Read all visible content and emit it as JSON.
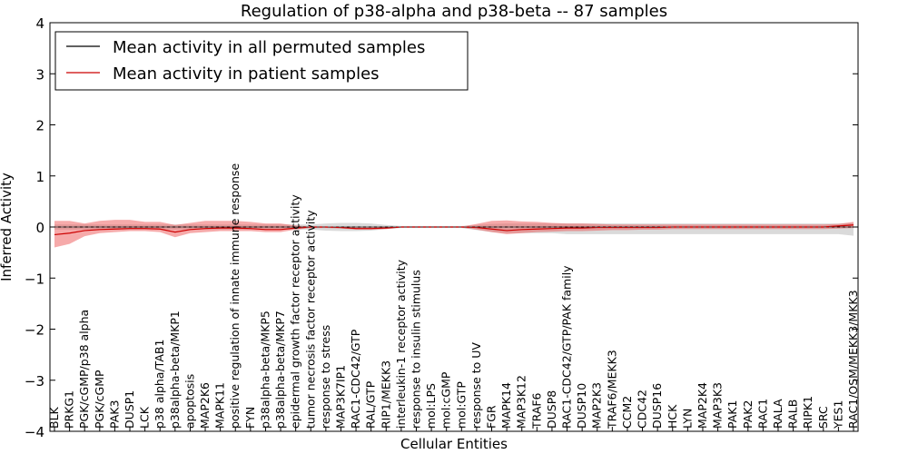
{
  "chart_data": {
    "type": "line",
    "title": "Regulation of p38-alpha and p38-beta -- 87 samples",
    "xlabel": "Cellular Entities",
    "ylabel": "Inferred Activity",
    "ylim": [
      -4,
      4
    ],
    "yticks": [
      -4,
      -3,
      -2,
      -1,
      0,
      1,
      2,
      3,
      4
    ],
    "ytick_labels": [
      "−4",
      "−3",
      "−2",
      "−1",
      "0",
      "1",
      "2",
      "3",
      "4"
    ],
    "legend_position": "top-left",
    "colors": {
      "permuted": "#000000",
      "patient": "#cc0000",
      "permuted_band": "#bbbbbb",
      "patient_band": "#ee5555"
    },
    "categories": [
      "BLK",
      "PRKG1",
      "PGK/cGMP/p38 alpha",
      "PGK/cGMP",
      "PAK3",
      "DUSP1",
      "LCK",
      "p38 alpha/TAB1",
      "p38alpha-beta/MKP1",
      "apoptosis",
      "MAP2K6",
      "MAPK11",
      "positive regulation of innate immune response",
      "FYN",
      "p38alpha-beta/MKP5",
      "p38alpha-beta/MKP7",
      "epidermal growth factor receptor activity",
      "tumor necrosis factor receptor activity",
      "response to stress",
      "MAP3K7IP1",
      "RAC1-CDC42/GTP",
      "RAL/GTP",
      "RIP1/MEKK3",
      "interleukin-1 receptor activity",
      "response to insulin stimulus",
      "mol:LPS",
      "mol:cGMP",
      "mol:GTP",
      "response to UV",
      "FGR",
      "MAPK14",
      "MAP3K12",
      "TRAF6",
      "DUSP8",
      "RAC1-CDC42/GTP/PAK family",
      "DUSP10",
      "MAP2K3",
      "TRAF6/MEKK3",
      "CCM2",
      "CDC42",
      "DUSP16",
      "HCK",
      "LYN",
      "MAP2K4",
      "MAP3K3",
      "PAK1",
      "PAK2",
      "RAC1",
      "RALA",
      "RALB",
      "RIPK1",
      "SRC",
      "YES1",
      "RAC1/OSM/MEKK3/MKK3"
    ],
    "series": [
      {
        "name": "Mean activity in all permuted samples",
        "values": [
          0.0,
          0.0,
          0.0,
          0.0,
          0.0,
          0.0,
          0.0,
          0.0,
          0.0,
          0.0,
          0.0,
          0.0,
          0.0,
          0.0,
          0.0,
          0.0,
          0.0,
          0.0,
          0.0,
          0.0,
          0.0,
          0.0,
          0.0,
          0.0,
          0.0,
          0.0,
          0.0,
          0.0,
          0.0,
          0.0,
          0.0,
          0.0,
          0.0,
          0.0,
          0.0,
          0.0,
          0.0,
          0.0,
          0.0,
          0.0,
          0.0,
          0.0,
          0.0,
          0.0,
          0.0,
          0.0,
          0.0,
          0.0,
          0.0,
          0.0,
          0.0,
          0.0,
          0.0,
          0.0
        ],
        "lower": [
          -0.05,
          -0.05,
          -0.05,
          -0.05,
          -0.05,
          -0.05,
          -0.05,
          -0.05,
          -0.05,
          -0.05,
          -0.05,
          -0.05,
          -0.05,
          -0.05,
          -0.05,
          -0.05,
          -0.05,
          -0.05,
          -0.07,
          -0.08,
          -0.08,
          -0.07,
          -0.04,
          -0.02,
          -0.02,
          -0.02,
          -0.02,
          -0.02,
          -0.06,
          -0.1,
          -0.12,
          -0.12,
          -0.12,
          -0.12,
          -0.14,
          -0.14,
          -0.14,
          -0.14,
          -0.14,
          -0.14,
          -0.14,
          -0.14,
          -0.14,
          -0.14,
          -0.14,
          -0.14,
          -0.14,
          -0.14,
          -0.14,
          -0.14,
          -0.14,
          -0.14,
          -0.14,
          -0.17
        ],
        "upper": [
          0.05,
          0.05,
          0.05,
          0.05,
          0.05,
          0.05,
          0.05,
          0.05,
          0.05,
          0.05,
          0.05,
          0.05,
          0.05,
          0.05,
          0.05,
          0.05,
          0.05,
          0.05,
          0.07,
          0.08,
          0.08,
          0.07,
          0.04,
          0.02,
          0.02,
          0.02,
          0.02,
          0.02,
          0.04,
          0.06,
          0.07,
          0.07,
          0.07,
          0.07,
          0.07,
          0.07,
          0.07,
          0.07,
          0.07,
          0.07,
          0.07,
          0.07,
          0.07,
          0.07,
          0.07,
          0.07,
          0.07,
          0.07,
          0.07,
          0.07,
          0.07,
          0.07,
          0.07,
          0.08
        ]
      },
      {
        "name": "Mean activity in patient samples",
        "values": [
          -0.15,
          -0.12,
          -0.07,
          -0.05,
          -0.04,
          -0.03,
          -0.03,
          -0.04,
          -0.1,
          -0.05,
          -0.03,
          -0.02,
          -0.02,
          -0.03,
          -0.05,
          -0.05,
          -0.02,
          0.0,
          0.0,
          -0.01,
          -0.03,
          -0.03,
          -0.02,
          0.0,
          0.0,
          0.0,
          0.0,
          0.0,
          -0.01,
          -0.04,
          -0.07,
          -0.05,
          -0.04,
          -0.03,
          -0.02,
          -0.02,
          -0.01,
          -0.01,
          -0.01,
          -0.01,
          -0.01,
          0.0,
          0.0,
          0.0,
          0.0,
          0.0,
          0.0,
          0.0,
          0.0,
          0.0,
          0.0,
          0.0,
          0.02,
          0.04
        ],
        "lower": [
          -0.4,
          -0.33,
          -0.18,
          -0.12,
          -0.1,
          -0.08,
          -0.08,
          -0.1,
          -0.2,
          -0.12,
          -0.1,
          -0.08,
          -0.08,
          -0.08,
          -0.1,
          -0.1,
          -0.05,
          -0.02,
          -0.02,
          -0.03,
          -0.05,
          -0.05,
          -0.04,
          -0.01,
          -0.01,
          -0.01,
          -0.01,
          -0.01,
          -0.05,
          -0.1,
          -0.14,
          -0.12,
          -0.1,
          -0.09,
          -0.08,
          -0.08,
          -0.07,
          -0.06,
          -0.06,
          -0.05,
          -0.05,
          -0.04,
          -0.04,
          -0.04,
          -0.04,
          -0.04,
          -0.04,
          -0.04,
          -0.04,
          -0.04,
          -0.04,
          -0.04,
          -0.03,
          -0.02
        ],
        "upper": [
          0.12,
          0.12,
          0.07,
          0.12,
          0.14,
          0.14,
          0.1,
          0.1,
          0.04,
          0.08,
          0.12,
          0.12,
          0.12,
          0.1,
          0.07,
          0.07,
          0.03,
          0.01,
          0.01,
          0.01,
          0.0,
          0.0,
          0.0,
          0.01,
          0.01,
          0.01,
          0.01,
          0.01,
          0.06,
          0.12,
          0.13,
          0.11,
          0.1,
          0.08,
          0.07,
          0.07,
          0.06,
          0.05,
          0.05,
          0.05,
          0.05,
          0.05,
          0.05,
          0.05,
          0.05,
          0.05,
          0.05,
          0.05,
          0.05,
          0.05,
          0.05,
          0.05,
          0.06,
          0.1
        ]
      }
    ]
  }
}
